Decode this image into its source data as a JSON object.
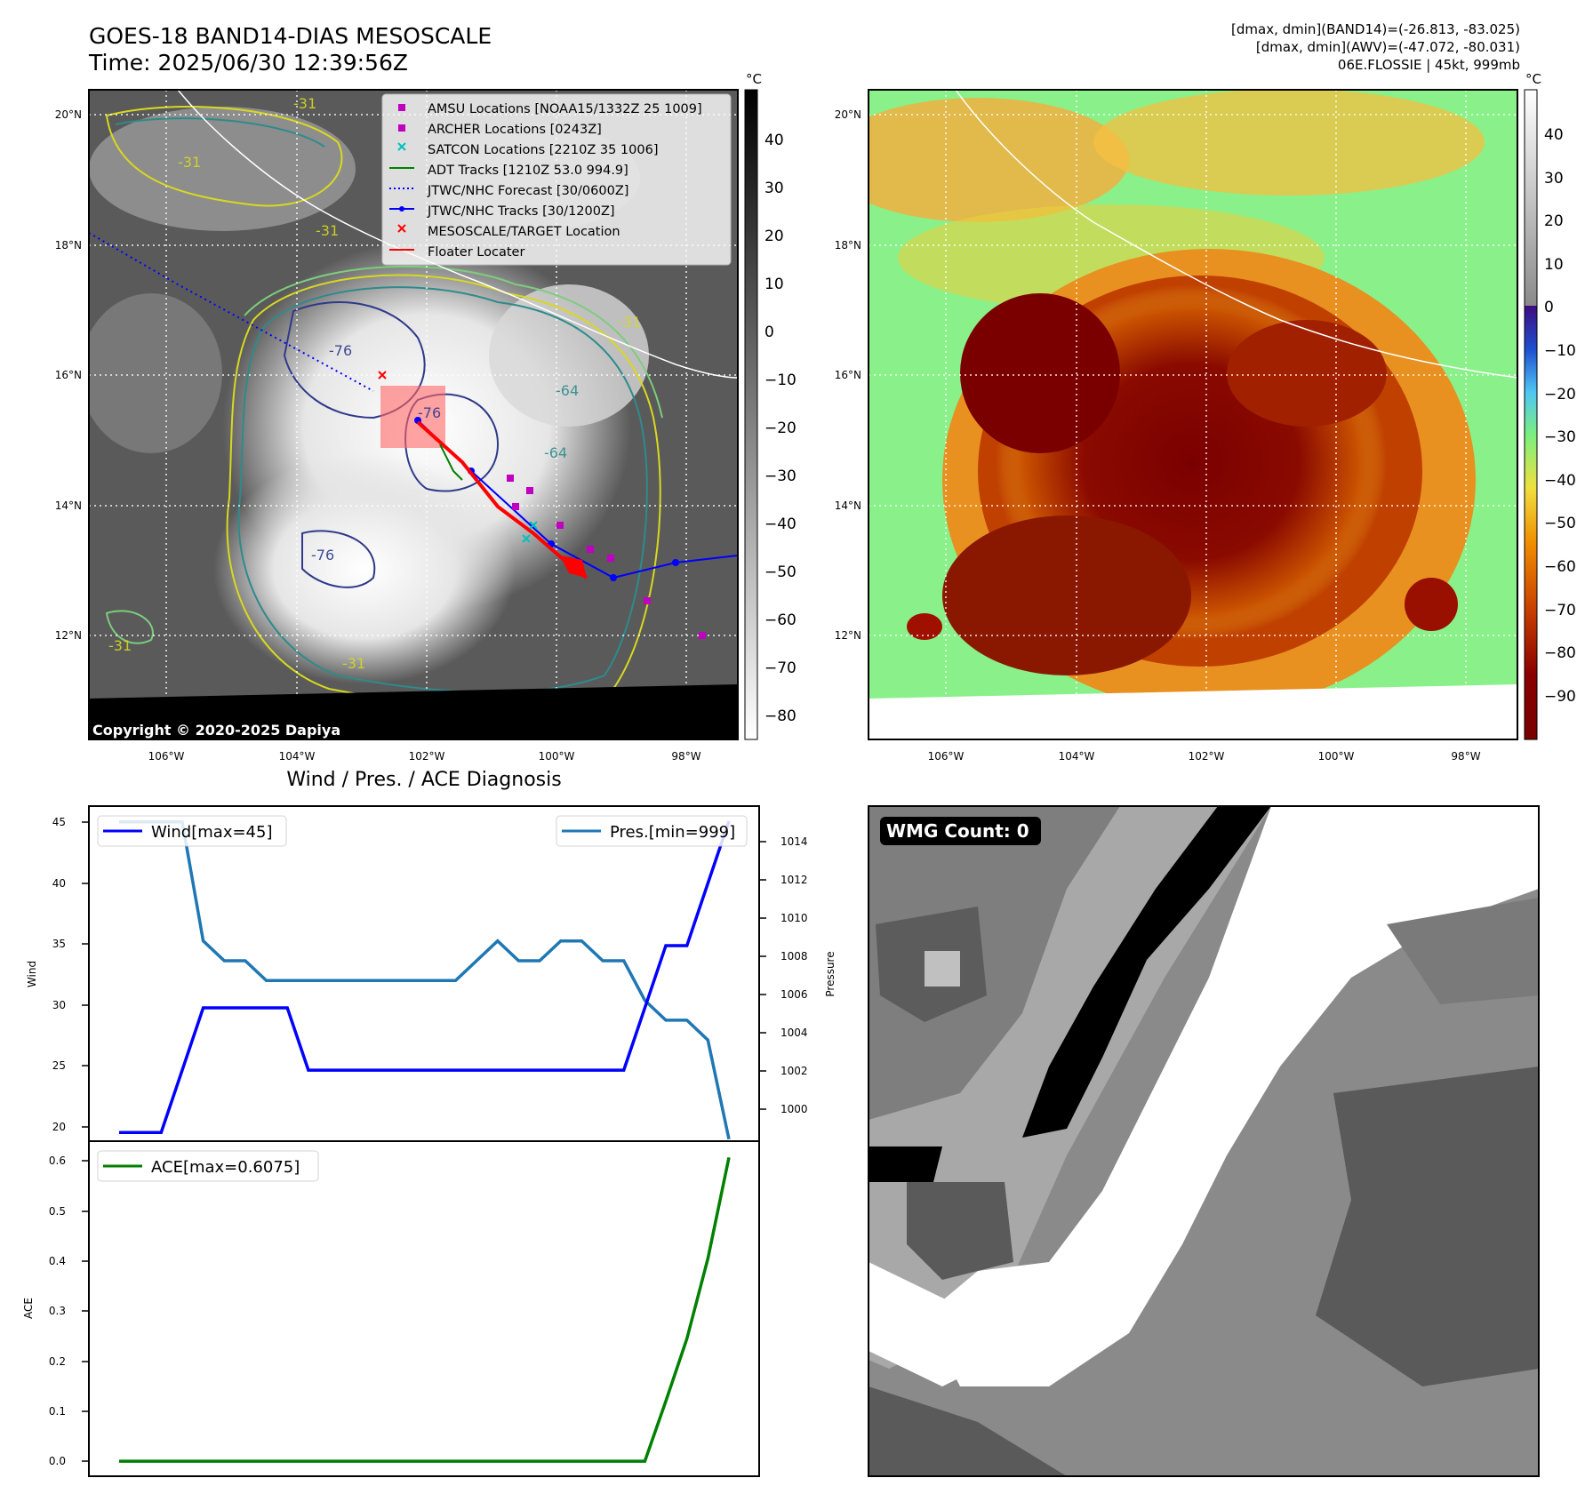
{
  "header": {
    "title": "GOES-18 BAND14-DIAS MESOSCALE",
    "time": "Time: 2025/06/30 12:39:56Z",
    "info_lines": [
      "[dmax, dmin](BAND14)=(-26.813, -83.025)",
      "[dmax, dmin](AWV)=(-47.072, -80.031)",
      "06E.FLOSSIE | 45kt, 999mb"
    ]
  },
  "maps": {
    "lat_labels": [
      "20°N",
      "18°N",
      "16°N",
      "14°N",
      "12°N"
    ],
    "lon_labels": [
      "106°W",
      "104°W",
      "102°W",
      "100°W",
      "98°W"
    ],
    "unit": "°C",
    "copyright": "Copyright © 2020-2025 Dapiya",
    "contour_labels": [
      "-31",
      "-31",
      "-31",
      "-76",
      "-76",
      "-76",
      "-64",
      "-64",
      "-31",
      "-31",
      "-31"
    ],
    "ir_colorbar_ticks": [
      "40",
      "30",
      "20",
      "10",
      "0",
      "−10",
      "−20",
      "−30",
      "−40",
      "−50",
      "−60",
      "−70",
      "−80"
    ],
    "enh_colorbar_ticks": [
      "40",
      "30",
      "20",
      "10",
      "0",
      "−10",
      "−20",
      "−30",
      "−40",
      "−50",
      "−60",
      "−70",
      "−80",
      "−90"
    ]
  },
  "legend": {
    "items": [
      {
        "label": "AMSU Locations [NOAA15/1332Z 25 1009]",
        "color": "#c000c0",
        "marker": "square"
      },
      {
        "label": "ARCHER Locations [0243Z]",
        "color": "#c000c0",
        "marker": "square"
      },
      {
        "label": "SATCON Locations [2210Z 35 1006]",
        "color": "#00c0c0",
        "marker": "x"
      },
      {
        "label": "ADT Tracks [1210Z 53.0 994.9]",
        "color": "#008000",
        "marker": "line"
      },
      {
        "label": "JTWC/NHC Forecast [30/0600Z]",
        "color": "#0000ff",
        "marker": "dotted"
      },
      {
        "label": "JTWC/NHC Tracks [30/1200Z]",
        "color": "#0000ff",
        "marker": "line-dot"
      },
      {
        "label": "MESOSCALE/TARGET Location",
        "color": "#ff0000",
        "marker": "x"
      },
      {
        "label": "Floater Locater",
        "color": "#ff0000",
        "marker": "line"
      }
    ]
  },
  "diagnosis": {
    "title": "Wind / Pres. / ACE Diagnosis",
    "wind_legend": "Wind[max=45]",
    "pres_legend": "Pres.[min=999]",
    "ace_legend": "ACE[max=0.6075]",
    "wind_axis_label": "Wind",
    "pres_axis_label": "Pressure",
    "ace_axis_label": "ACE",
    "wind_ticks": [
      "45",
      "40",
      "35",
      "30",
      "25",
      "20"
    ],
    "pres_ticks": [
      "1014",
      "1012",
      "1010",
      "1008",
      "1006",
      "1004",
      "1002",
      "1000"
    ],
    "ace_ticks": [
      "0.6",
      "0.5",
      "0.4",
      "0.3",
      "0.2",
      "0.1",
      "0.0"
    ]
  },
  "wmg": {
    "label": "WMG Count: 0"
  },
  "chart_data": [
    {
      "type": "line",
      "name": "wind-pressure",
      "x": [
        0,
        1,
        2,
        3,
        4,
        5,
        6,
        7,
        8,
        9,
        10,
        11,
        12,
        13,
        14,
        15,
        16,
        17,
        18,
        19,
        20,
        21,
        22,
        23,
        24,
        25,
        26,
        27,
        28,
        29
      ],
      "series": [
        {
          "name": "Wind[max=45]",
          "color": "#0000ff",
          "axis": "left",
          "values": [
            20,
            20,
            20,
            25,
            30,
            30,
            30,
            30,
            30,
            25,
            25,
            25,
            25,
            25,
            25,
            25,
            25,
            25,
            25,
            25,
            25,
            25,
            25,
            25,
            25,
            30,
            35,
            35,
            40,
            45
          ]
        },
        {
          "name": "Pres.[min=999]",
          "color": "#1f77b4",
          "axis": "right",
          "values": [
            1015,
            1015,
            1015,
            1015,
            1009,
            1008,
            1008,
            1007,
            1007,
            1007,
            1007,
            1007,
            1007,
            1007,
            1007,
            1007,
            1007,
            1008,
            1009,
            1008,
            1008,
            1009,
            1009,
            1008,
            1008,
            1006,
            1005,
            1005,
            1004,
            999
          ]
        }
      ],
      "ylim_left": [
        19.3,
        46.2
      ],
      "ylim_right": [
        998.9,
        1015.8
      ],
      "ylabel": "Wind",
      "ylabel_right": "Pressure"
    },
    {
      "type": "line",
      "name": "ace",
      "x": [
        0,
        1,
        2,
        3,
        4,
        5,
        6,
        7,
        8,
        9,
        10,
        11,
        12,
        13,
        14,
        15,
        16,
        17,
        18,
        19,
        20,
        21,
        22,
        23,
        24,
        25,
        26,
        27,
        28,
        29
      ],
      "series": [
        {
          "name": "ACE[max=0.6075]",
          "color": "#008000",
          "values": [
            0,
            0,
            0,
            0,
            0,
            0,
            0,
            0,
            0,
            0,
            0,
            0,
            0,
            0,
            0,
            0,
            0,
            0,
            0,
            0,
            0,
            0,
            0,
            0,
            0,
            0,
            0.12,
            0.245,
            0.405,
            0.6075
          ]
        }
      ],
      "ylim": [
        -0.03,
        0.64
      ],
      "ylabel": "ACE"
    }
  ]
}
